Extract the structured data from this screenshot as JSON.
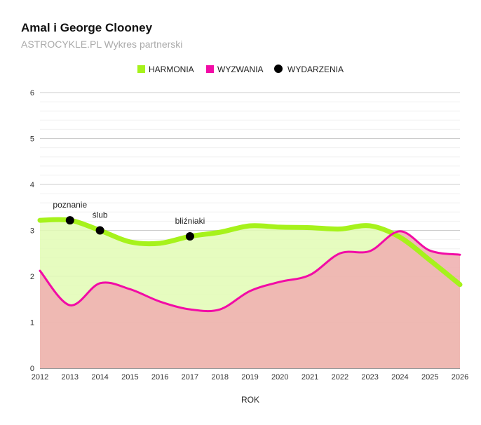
{
  "chart_data": {
    "type": "area",
    "title": "Amal i George Clooney",
    "subtitle": "ASTROCYKLE.PL Wykres partnerski",
    "xlabel": "ROK",
    "ylabel": "",
    "xlim": [
      2012,
      2026
    ],
    "ylim": [
      0,
      6
    ],
    "x_ticks": [
      "2012",
      "2013",
      "2014",
      "2015",
      "2016",
      "2017",
      "2018",
      "2019",
      "2020",
      "2021",
      "2022",
      "2023",
      "2024",
      "2025",
      "2026"
    ],
    "y_ticks": [
      "0",
      "1",
      "2",
      "3",
      "4",
      "5",
      "6"
    ],
    "legend_position": "top",
    "series": [
      {
        "name": "HARMONIA",
        "color": "#a6f21b",
        "fill": "#e2fcb4",
        "x": [
          2012,
          2013,
          2014,
          2015,
          2016,
          2017,
          2018,
          2019,
          2020,
          2021,
          2022,
          2023,
          2024,
          2025,
          2026
        ],
        "values": [
          3.22,
          3.22,
          3.0,
          2.75,
          2.72,
          2.87,
          2.96,
          3.1,
          3.07,
          3.06,
          3.03,
          3.1,
          2.85,
          2.35,
          1.82
        ]
      },
      {
        "name": "WYZWANIA",
        "color": "#f20ca6",
        "fill": "#efb1b1",
        "x": [
          2012,
          2013,
          2014,
          2015,
          2016,
          2017,
          2018,
          2019,
          2020,
          2021,
          2022,
          2023,
          2024,
          2025,
          2026
        ],
        "values": [
          2.12,
          1.37,
          1.85,
          1.72,
          1.45,
          1.28,
          1.28,
          1.68,
          1.88,
          2.03,
          2.5,
          2.55,
          2.98,
          2.56,
          2.47
        ]
      }
    ],
    "events": {
      "name": "WYDARZENIA",
      "color": "#000000",
      "points": [
        {
          "x": 2013,
          "y": 3.22,
          "label": "poznanie"
        },
        {
          "x": 2014,
          "y": 3.0,
          "label": "ślub"
        },
        {
          "x": 2017,
          "y": 2.87,
          "label": "bliźniaki"
        }
      ]
    }
  }
}
